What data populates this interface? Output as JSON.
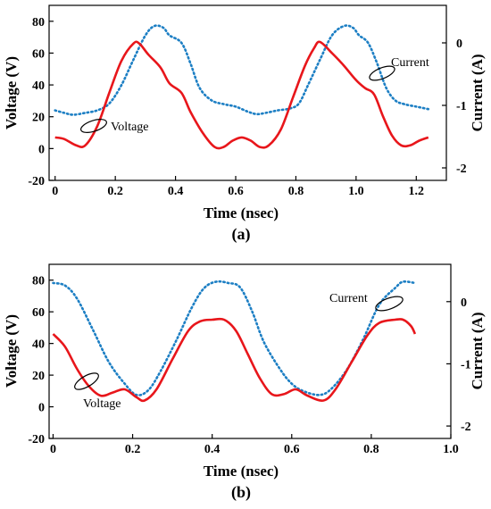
{
  "chart_data": [
    {
      "type": "line",
      "panel_label": "(a)",
      "xlabel": "Time (nsec)",
      "ylabel_left": "Voltage (V)",
      "ylabel_right": "Current (A)",
      "xlim": [
        -0.02,
        1.3
      ],
      "ylim_left": [
        -20,
        90
      ],
      "ylim_right": [
        -2.2,
        0.6
      ],
      "xticks": [
        "0",
        "0.2",
        "0.4",
        "0.6",
        "0.8",
        "1.0",
        "1.2"
      ],
      "xtick_values": [
        0,
        0.2,
        0.4,
        0.6,
        0.8,
        1.0,
        1.2
      ],
      "yticks_left": [
        "-20",
        "0",
        "20",
        "40",
        "60",
        "80"
      ],
      "ytick_values_left": [
        -20,
        0,
        20,
        40,
        60,
        80
      ],
      "yticks_right": [
        "-2",
        "-1",
        "0"
      ],
      "ytick_values_right": [
        -2,
        -1,
        0
      ],
      "grid": false,
      "series": [
        {
          "name": "Voltage",
          "axis": "left",
          "color": "#e8161b",
          "style": "solid",
          "points": [
            [
              0,
              7
            ],
            [
              0.03,
              6
            ],
            [
              0.07,
              2
            ],
            [
              0.1,
              2
            ],
            [
              0.14,
              14
            ],
            [
              0.18,
              35
            ],
            [
              0.22,
              55
            ],
            [
              0.26,
              66
            ],
            [
              0.28,
              66
            ],
            [
              0.31,
              59
            ],
            [
              0.35,
              51
            ],
            [
              0.38,
              41
            ],
            [
              0.42,
              35
            ],
            [
              0.45,
              23
            ],
            [
              0.49,
              10
            ],
            [
              0.53,
              1
            ],
            [
              0.56,
              1
            ],
            [
              0.59,
              5
            ],
            [
              0.62,
              7
            ],
            [
              0.65,
              5
            ],
            [
              0.68,
              1
            ],
            [
              0.71,
              2
            ],
            [
              0.75,
              12
            ],
            [
              0.79,
              32
            ],
            [
              0.83,
              52
            ],
            [
              0.86,
              63
            ],
            [
              0.88,
              67
            ],
            [
              0.92,
              60
            ],
            [
              0.96,
              52
            ],
            [
              1.0,
              43
            ],
            [
              1.03,
              38
            ],
            [
              1.06,
              34
            ],
            [
              1.09,
              20
            ],
            [
              1.12,
              8
            ],
            [
              1.15,
              2
            ],
            [
              1.18,
              2
            ],
            [
              1.21,
              5
            ],
            [
              1.24,
              7
            ]
          ]
        },
        {
          "name": "Current",
          "axis": "right",
          "color": "#1d7fc4",
          "style": "dotted",
          "points": [
            [
              0,
              -1.08
            ],
            [
              0.03,
              -1.12
            ],
            [
              0.06,
              -1.15
            ],
            [
              0.1,
              -1.12
            ],
            [
              0.14,
              -1.08
            ],
            [
              0.18,
              -0.97
            ],
            [
              0.22,
              -0.68
            ],
            [
              0.26,
              -0.27
            ],
            [
              0.3,
              0.12
            ],
            [
              0.33,
              0.27
            ],
            [
              0.36,
              0.24
            ],
            [
              0.38,
              0.12
            ],
            [
              0.42,
              0.0
            ],
            [
              0.45,
              -0.33
            ],
            [
              0.48,
              -0.72
            ],
            [
              0.52,
              -0.92
            ],
            [
              0.56,
              -0.98
            ],
            [
              0.6,
              -1.02
            ],
            [
              0.64,
              -1.1
            ],
            [
              0.67,
              -1.14
            ],
            [
              0.7,
              -1.12
            ],
            [
              0.74,
              -1.08
            ],
            [
              0.78,
              -1.05
            ],
            [
              0.81,
              -0.97
            ],
            [
              0.84,
              -0.68
            ],
            [
              0.88,
              -0.27
            ],
            [
              0.92,
              0.12
            ],
            [
              0.96,
              0.27
            ],
            [
              0.99,
              0.24
            ],
            [
              1.01,
              0.12
            ],
            [
              1.04,
              0.0
            ],
            [
              1.07,
              -0.33
            ],
            [
              1.1,
              -0.72
            ],
            [
              1.13,
              -0.92
            ],
            [
              1.16,
              -0.98
            ],
            [
              1.2,
              -1.02
            ],
            [
              1.24,
              -1.06
            ]
          ]
        }
      ],
      "annotations": [
        "Voltage",
        "Current"
      ]
    },
    {
      "type": "line",
      "panel_label": "(b)",
      "xlabel": "Time (nsec)",
      "ylabel_left": "Voltage (V)",
      "ylabel_right": "Current (A)",
      "xlim": [
        -0.01,
        1.0
      ],
      "ylim_left": [
        -20,
        90
      ],
      "ylim_right": [
        -2.2,
        0.6
      ],
      "xticks": [
        "0",
        "0.2",
        "0.4",
        "0.6",
        "0.8",
        "1.0"
      ],
      "xtick_values": [
        0,
        0.2,
        0.4,
        0.6,
        0.8,
        1.0
      ],
      "yticks_left": [
        "-20",
        "0",
        "20",
        "40",
        "60",
        "80"
      ],
      "ytick_values_left": [
        -20,
        0,
        20,
        40,
        60,
        80
      ],
      "yticks_right": [
        "-2",
        "-1",
        "0"
      ],
      "ytick_values_right": [
        -2,
        -1,
        0
      ],
      "grid": false,
      "series": [
        {
          "name": "Voltage",
          "axis": "left",
          "color": "#e8161b",
          "style": "solid",
          "points": [
            [
              0,
              46
            ],
            [
              0.03,
              38
            ],
            [
              0.06,
              24
            ],
            [
              0.09,
              13
            ],
            [
              0.12,
              7
            ],
            [
              0.15,
              9
            ],
            [
              0.18,
              11
            ],
            [
              0.21,
              6
            ],
            [
              0.23,
              4
            ],
            [
              0.26,
              11
            ],
            [
              0.3,
              30
            ],
            [
              0.34,
              48
            ],
            [
              0.37,
              54
            ],
            [
              0.4,
              55
            ],
            [
              0.43,
              55
            ],
            [
              0.46,
              48
            ],
            [
              0.49,
              33
            ],
            [
              0.52,
              18
            ],
            [
              0.55,
              8
            ],
            [
              0.58,
              8
            ],
            [
              0.61,
              11
            ],
            [
              0.64,
              7
            ],
            [
              0.68,
              4
            ],
            [
              0.71,
              11
            ],
            [
              0.75,
              28
            ],
            [
              0.79,
              45
            ],
            [
              0.82,
              53
            ],
            [
              0.86,
              55
            ],
            [
              0.88,
              55
            ],
            [
              0.9,
              51
            ],
            [
              0.91,
              46
            ]
          ]
        },
        {
          "name": "Current",
          "axis": "right",
          "color": "#1d7fc4",
          "style": "dotted",
          "points": [
            [
              0,
              0.3
            ],
            [
              0.03,
              0.26
            ],
            [
              0.06,
              0.05
            ],
            [
              0.1,
              -0.45
            ],
            [
              0.14,
              -0.97
            ],
            [
              0.18,
              -1.32
            ],
            [
              0.21,
              -1.5
            ],
            [
              0.24,
              -1.42
            ],
            [
              0.27,
              -1.12
            ],
            [
              0.31,
              -0.62
            ],
            [
              0.35,
              -0.08
            ],
            [
              0.38,
              0.22
            ],
            [
              0.41,
              0.32
            ],
            [
              0.44,
              0.3
            ],
            [
              0.47,
              0.23
            ],
            [
              0.5,
              -0.15
            ],
            [
              0.53,
              -0.65
            ],
            [
              0.57,
              -1.08
            ],
            [
              0.6,
              -1.32
            ],
            [
              0.63,
              -1.44
            ],
            [
              0.67,
              -1.5
            ],
            [
              0.7,
              -1.4
            ],
            [
              0.74,
              -1.08
            ],
            [
              0.78,
              -0.6
            ],
            [
              0.82,
              -0.05
            ],
            [
              0.86,
              0.22
            ],
            [
              0.88,
              0.32
            ],
            [
              0.91,
              0.3
            ]
          ]
        }
      ],
      "annotations": [
        "Voltage",
        "Current"
      ]
    }
  ]
}
